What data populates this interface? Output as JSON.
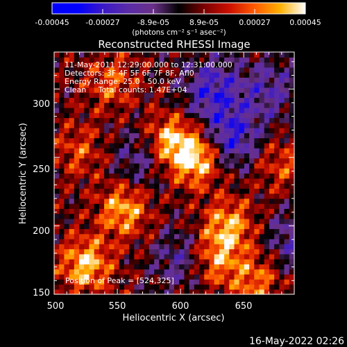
{
  "chart_data": {
    "type": "heatmap",
    "title": "Reconstructed RHESSI Image",
    "xlabel": "Heliocentric X (arcsec)",
    "ylabel": "Heliocentric Y (arcsec)",
    "xlim": [
      500,
      690
    ],
    "ylim": [
      150,
      327
    ],
    "x_ticks": [
      "500",
      "550",
      "600",
      "650"
    ],
    "y_ticks": [
      "150",
      "200",
      "250",
      "300"
    ],
    "colorbar": {
      "range": [
        -0.00045,
        0.00045
      ],
      "tick_labels": [
        "-0.00045",
        "-0.00027",
        "-8.9e-05",
        "8.9e-05",
        "0.00027",
        "0.00045"
      ],
      "unit_label": "(photons cm⁻² s⁻¹ asec⁻²)"
    },
    "annotations": [
      "11-May-2011 12:29:00.000 to 12:31:00.000",
      "Detectors: 3F 4F 5F 6F 7F 8F, Afl0",
      "Energy Range: 25.0 - 50.0 keV",
      "Clean     Total counts: 1.47E+04"
    ],
    "peak_label": "Position of Peak = [524,325]",
    "peak": [
      524,
      325
    ],
    "bright_regions": [
      {
        "x": 612,
        "y": 250,
        "value": 0.00045
      },
      {
        "x": 590,
        "y": 262,
        "value": 0.00038
      },
      {
        "x": 555,
        "y": 212,
        "value": 0.00036
      },
      {
        "x": 525,
        "y": 172,
        "value": 0.0004
      },
      {
        "x": 638,
        "y": 200,
        "value": 0.00035
      },
      {
        "x": 628,
        "y": 175,
        "value": 0.0003
      },
      {
        "x": 660,
        "y": 160,
        "value": 0.00028
      },
      {
        "x": 545,
        "y": 305,
        "value": 0.00025
      },
      {
        "x": 520,
        "y": 255,
        "value": 0.00022
      },
      {
        "x": 680,
        "y": 245,
        "value": 0.00022
      }
    ],
    "dark_regions": [
      {
        "x": 570,
        "y": 250,
        "value": -0.0002
      },
      {
        "x": 640,
        "y": 265,
        "value": -0.0003
      },
      {
        "x": 625,
        "y": 300,
        "value": -0.00028
      },
      {
        "x": 670,
        "y": 300,
        "value": -0.0002
      },
      {
        "x": 600,
        "y": 175,
        "value": -0.00018
      },
      {
        "x": 690,
        "y": 190,
        "value": -0.0002
      }
    ]
  },
  "timestamp": "16-May-2022 02:26"
}
